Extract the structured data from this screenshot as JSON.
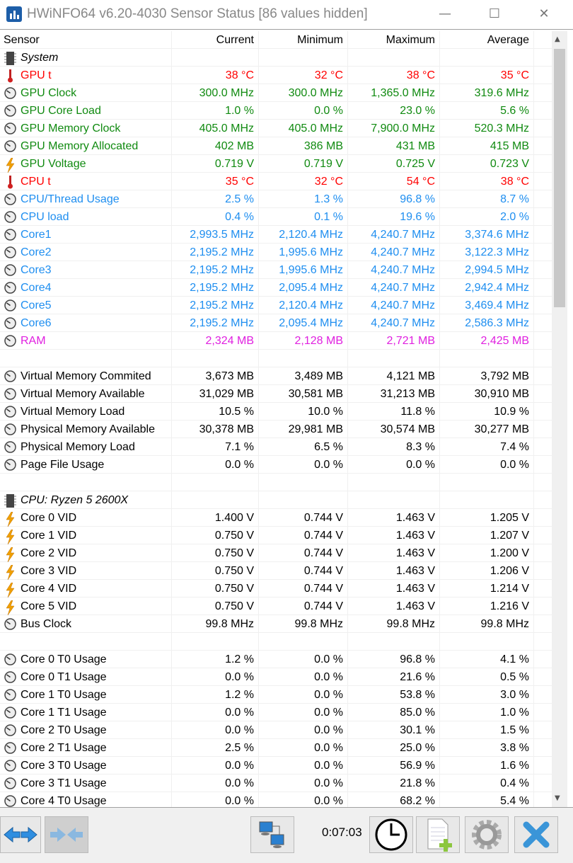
{
  "window": {
    "title": "HWiNFO64 v6.20-4030 Sensor Status [86 values hidden]",
    "minimize": "—",
    "maximize": "☐",
    "close": "✕"
  },
  "colors": {
    "red": "#ff0000",
    "green": "#108a10",
    "blue": "#1e8ef0",
    "magenta": "#e020e0",
    "black": "#000000"
  },
  "columns": [
    "Sensor",
    "Current",
    "Minimum",
    "Maximum",
    "Average"
  ],
  "rows": [
    {
      "type": "group",
      "icon": "chip-icon",
      "label": "System"
    },
    {
      "icon": "thermometer-icon",
      "color": "red",
      "label": "GPU t",
      "values": [
        "38 °C",
        "32 °C",
        "38 °C",
        "35 °C"
      ]
    },
    {
      "icon": "gauge-icon",
      "color": "green",
      "label": "GPU Clock",
      "values": [
        "300.0 MHz",
        "300.0 MHz",
        "1,365.0 MHz",
        "319.6 MHz"
      ]
    },
    {
      "icon": "gauge-icon",
      "color": "green",
      "label": "GPU Core Load",
      "values": [
        "1.0 %",
        "0.0 %",
        "23.0 %",
        "5.6 %"
      ]
    },
    {
      "icon": "gauge-icon",
      "color": "green",
      "label": "GPU Memory Clock",
      "values": [
        "405.0 MHz",
        "405.0 MHz",
        "7,900.0 MHz",
        "520.3 MHz"
      ]
    },
    {
      "icon": "gauge-icon",
      "color": "green",
      "label": "GPU Memory Allocated",
      "values": [
        "402 MB",
        "386 MB",
        "431 MB",
        "415 MB"
      ]
    },
    {
      "icon": "voltage-icon",
      "color": "green",
      "label": "GPU Voltage",
      "values": [
        "0.719 V",
        "0.719 V",
        "0.725 V",
        "0.723 V"
      ]
    },
    {
      "icon": "thermometer-icon",
      "color": "red",
      "label": "CPU t",
      "values": [
        "35 °C",
        "32 °C",
        "54 °C",
        "38 °C"
      ]
    },
    {
      "icon": "gauge-icon",
      "color": "blue",
      "label": "CPU/Thread Usage",
      "values": [
        "2.5 %",
        "1.3 %",
        "96.8 %",
        "8.7 %"
      ]
    },
    {
      "icon": "gauge-icon",
      "color": "blue",
      "label": "CPU load",
      "values": [
        "0.4 %",
        "0.1 %",
        "19.6 %",
        "2.0 %"
      ]
    },
    {
      "icon": "gauge-icon",
      "color": "blue",
      "label": "Core1",
      "values": [
        "2,993.5 MHz",
        "2,120.4 MHz",
        "4,240.7 MHz",
        "3,374.6 MHz"
      ]
    },
    {
      "icon": "gauge-icon",
      "color": "blue",
      "label": "Core2",
      "values": [
        "2,195.2 MHz",
        "1,995.6 MHz",
        "4,240.7 MHz",
        "3,122.3 MHz"
      ]
    },
    {
      "icon": "gauge-icon",
      "color": "blue",
      "label": "Core3",
      "values": [
        "2,195.2 MHz",
        "1,995.6 MHz",
        "4,240.7 MHz",
        "2,994.5 MHz"
      ]
    },
    {
      "icon": "gauge-icon",
      "color": "blue",
      "label": "Core4",
      "values": [
        "2,195.2 MHz",
        "2,095.4 MHz",
        "4,240.7 MHz",
        "2,942.4 MHz"
      ]
    },
    {
      "icon": "gauge-icon",
      "color": "blue",
      "label": "Core5",
      "values": [
        "2,195.2 MHz",
        "2,120.4 MHz",
        "4,240.7 MHz",
        "3,469.4 MHz"
      ]
    },
    {
      "icon": "gauge-icon",
      "color": "blue",
      "label": "Core6",
      "values": [
        "2,195.2 MHz",
        "2,095.4 MHz",
        "4,240.7 MHz",
        "2,586.3 MHz"
      ]
    },
    {
      "icon": "gauge-icon",
      "color": "magenta",
      "label": "RAM",
      "values": [
        "2,324 MB",
        "2,128 MB",
        "2,721 MB",
        "2,425 MB"
      ]
    },
    {
      "type": "blank"
    },
    {
      "icon": "gauge-icon",
      "color": "black",
      "label": "Virtual Memory Commited",
      "values": [
        "3,673 MB",
        "3,489 MB",
        "4,121 MB",
        "3,792 MB"
      ]
    },
    {
      "icon": "gauge-icon",
      "color": "black",
      "label": "Virtual Memory Available",
      "values": [
        "31,029 MB",
        "30,581 MB",
        "31,213 MB",
        "30,910 MB"
      ]
    },
    {
      "icon": "gauge-icon",
      "color": "black",
      "label": "Virtual Memory Load",
      "values": [
        "10.5 %",
        "10.0 %",
        "11.8 %",
        "10.9 %"
      ]
    },
    {
      "icon": "gauge-icon",
      "color": "black",
      "label": "Physical Memory Available",
      "values": [
        "30,378 MB",
        "29,981 MB",
        "30,574 MB",
        "30,277 MB"
      ]
    },
    {
      "icon": "gauge-icon",
      "color": "black",
      "label": "Physical Memory Load",
      "values": [
        "7.1 %",
        "6.5 %",
        "8.3 %",
        "7.4 %"
      ]
    },
    {
      "icon": "gauge-icon",
      "color": "black",
      "label": "Page File Usage",
      "values": [
        "0.0 %",
        "0.0 %",
        "0.0 %",
        "0.0 %"
      ]
    },
    {
      "type": "blank"
    },
    {
      "type": "group",
      "icon": "chip-icon",
      "label": "CPU: Ryzen 5 2600X"
    },
    {
      "icon": "voltage-icon",
      "color": "black",
      "label": "Core 0 VID",
      "values": [
        "1.400 V",
        "0.744 V",
        "1.463 V",
        "1.205 V"
      ]
    },
    {
      "icon": "voltage-icon",
      "color": "black",
      "label": "Core 1 VID",
      "values": [
        "0.750 V",
        "0.744 V",
        "1.463 V",
        "1.207 V"
      ]
    },
    {
      "icon": "voltage-icon",
      "color": "black",
      "label": "Core 2 VID",
      "values": [
        "0.750 V",
        "0.744 V",
        "1.463 V",
        "1.200 V"
      ]
    },
    {
      "icon": "voltage-icon",
      "color": "black",
      "label": "Core 3 VID",
      "values": [
        "0.750 V",
        "0.744 V",
        "1.463 V",
        "1.206 V"
      ]
    },
    {
      "icon": "voltage-icon",
      "color": "black",
      "label": "Core 4 VID",
      "values": [
        "0.750 V",
        "0.744 V",
        "1.463 V",
        "1.214 V"
      ]
    },
    {
      "icon": "voltage-icon",
      "color": "black",
      "label": "Core 5 VID",
      "values": [
        "0.750 V",
        "0.744 V",
        "1.463 V",
        "1.216 V"
      ]
    },
    {
      "icon": "gauge-icon",
      "color": "black",
      "label": "Bus Clock",
      "values": [
        "99.8 MHz",
        "99.8 MHz",
        "99.8 MHz",
        "99.8 MHz"
      ]
    },
    {
      "type": "blank"
    },
    {
      "icon": "gauge-icon",
      "color": "black",
      "label": "Core 0 T0 Usage",
      "values": [
        "1.2 %",
        "0.0 %",
        "96.8 %",
        "4.1 %"
      ]
    },
    {
      "icon": "gauge-icon",
      "color": "black",
      "label": "Core 0 T1 Usage",
      "values": [
        "0.0 %",
        "0.0 %",
        "21.6 %",
        "0.5 %"
      ]
    },
    {
      "icon": "gauge-icon",
      "color": "black",
      "label": "Core 1 T0 Usage",
      "values": [
        "1.2 %",
        "0.0 %",
        "53.8 %",
        "3.0 %"
      ]
    },
    {
      "icon": "gauge-icon",
      "color": "black",
      "label": "Core 1 T1 Usage",
      "values": [
        "0.0 %",
        "0.0 %",
        "85.0 %",
        "1.0 %"
      ]
    },
    {
      "icon": "gauge-icon",
      "color": "black",
      "label": "Core 2 T0 Usage",
      "values": [
        "0.0 %",
        "0.0 %",
        "30.1 %",
        "1.5 %"
      ]
    },
    {
      "icon": "gauge-icon",
      "color": "black",
      "label": "Core 2 T1 Usage",
      "values": [
        "2.5 %",
        "0.0 %",
        "25.0 %",
        "3.8 %"
      ]
    },
    {
      "icon": "gauge-icon",
      "color": "black",
      "label": "Core 3 T0 Usage",
      "values": [
        "0.0 %",
        "0.0 %",
        "56.9 %",
        "1.6 %"
      ]
    },
    {
      "icon": "gauge-icon",
      "color": "black",
      "label": "Core 3 T1 Usage",
      "values": [
        "0.0 %",
        "0.0 %",
        "21.8 %",
        "0.4 %"
      ]
    },
    {
      "icon": "gauge-icon",
      "color": "black",
      "label": "Core 4 T0 Usage",
      "values": [
        "0.0 %",
        "0.0 %",
        "68.2 %",
        "5.4 %"
      ]
    }
  ],
  "toolbar": {
    "timer": "0:07:03"
  }
}
